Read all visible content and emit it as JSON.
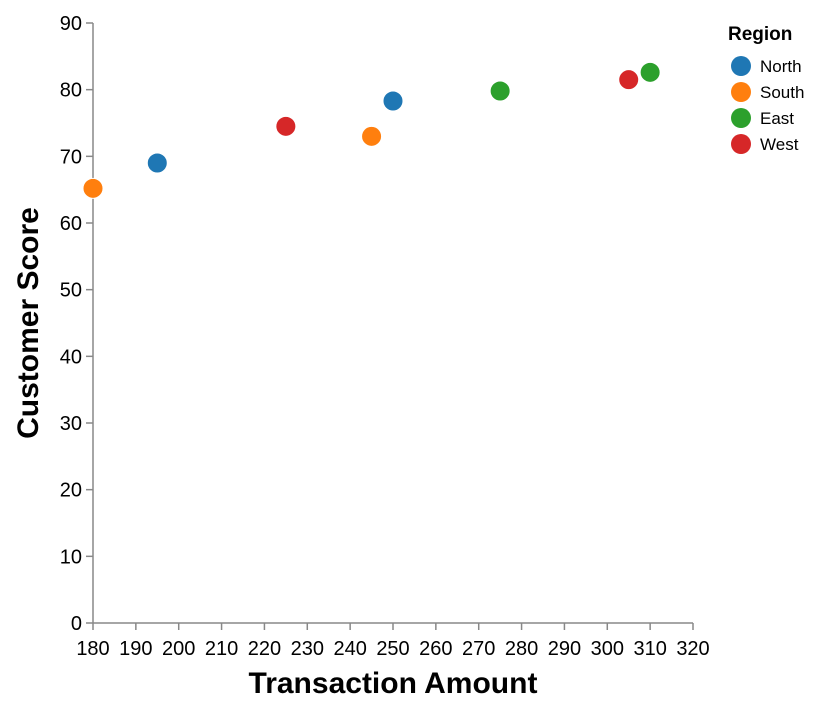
{
  "chart_data": {
    "type": "scatter",
    "xlabel": "Transaction Amount",
    "ylabel": "Customer Score",
    "xlim": [
      180,
      320
    ],
    "ylim": [
      0,
      90
    ],
    "x_ticks": [
      180,
      190,
      200,
      210,
      220,
      230,
      240,
      250,
      260,
      270,
      280,
      290,
      300,
      310,
      320
    ],
    "y_ticks": [
      0,
      10,
      20,
      30,
      40,
      50,
      60,
      70,
      80,
      90
    ],
    "grid": false,
    "legend": {
      "title": "Region",
      "placement": "right"
    },
    "series": [
      {
        "name": "North",
        "color": "#1f77b4",
        "points": [
          {
            "x": 195,
            "y": 69
          },
          {
            "x": 250,
            "y": 78.3
          }
        ]
      },
      {
        "name": "South",
        "color": "#ff7f0e",
        "points": [
          {
            "x": 180,
            "y": 65.2
          },
          {
            "x": 245,
            "y": 73
          }
        ]
      },
      {
        "name": "East",
        "color": "#2ca02c",
        "points": [
          {
            "x": 275,
            "y": 79.8
          },
          {
            "x": 310,
            "y": 82.6
          }
        ]
      },
      {
        "name": "West",
        "color": "#d62728",
        "points": [
          {
            "x": 225,
            "y": 74.5
          },
          {
            "x": 305,
            "y": 81.5
          }
        ]
      }
    ]
  }
}
